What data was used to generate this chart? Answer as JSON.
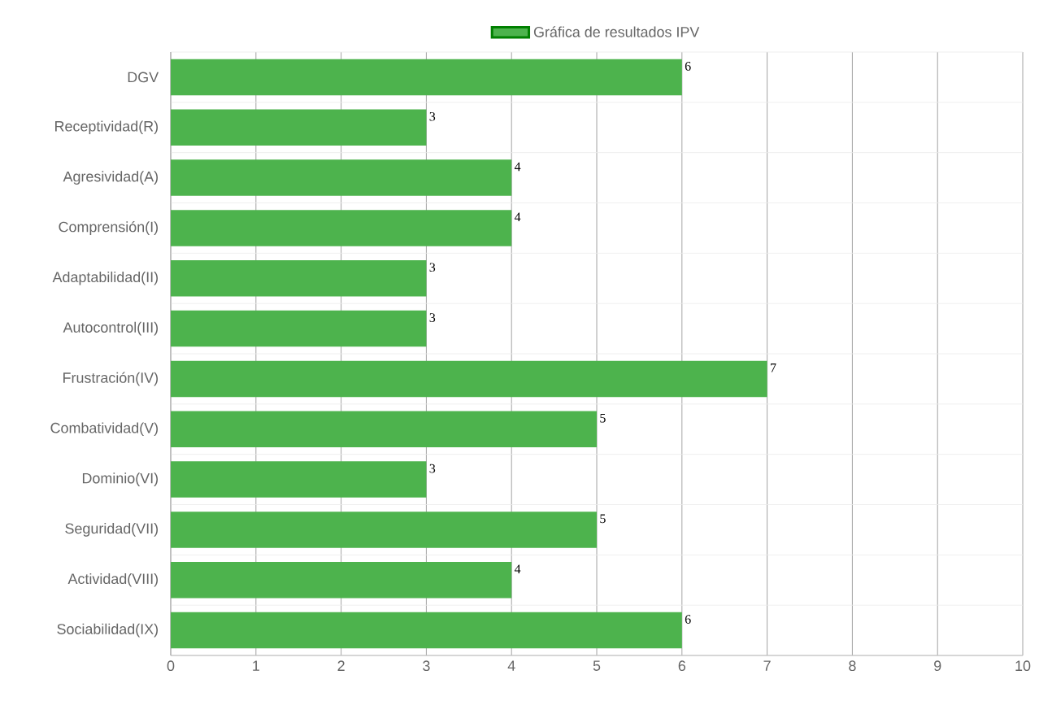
{
  "chart_data": {
    "type": "bar",
    "orientation": "horizontal",
    "categories": [
      "DGV",
      "Receptividad(R)",
      "Agresividad(A)",
      "Comprensión(I)",
      "Adaptabilidad(II)",
      "Autocontrol(III)",
      "Frustración(IV)",
      "Combatividad(V)",
      "Dominio(VI)",
      "Seguridad(VII)",
      "Actividad(VIII)",
      "Sociabilidad(IX)"
    ],
    "series": [
      {
        "name": "Gráfica de resultados IPV",
        "color": "#4db34d",
        "values": [
          6,
          3,
          4,
          4,
          3,
          3,
          7,
          5,
          3,
          5,
          4,
          6
        ]
      }
    ],
    "xlim": [
      0,
      10
    ],
    "xticks": [
      0,
      1,
      2,
      3,
      4,
      5,
      6,
      7,
      8,
      9,
      10
    ],
    "grid": true,
    "legend": "top",
    "data_labels": true
  }
}
